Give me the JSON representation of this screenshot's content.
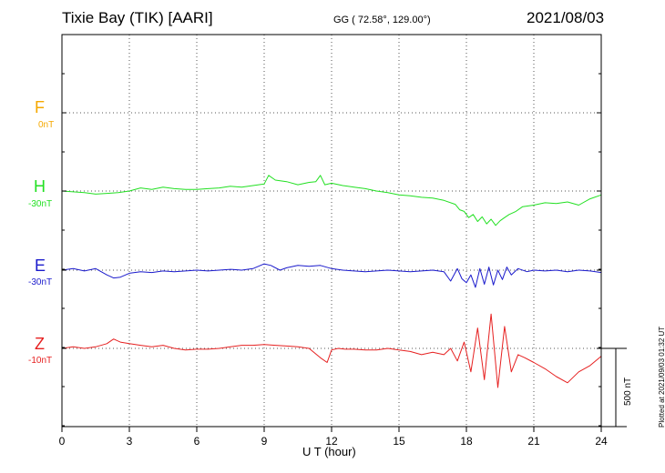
{
  "header": {
    "station": "Tixie Bay (TIK)  [AARI]",
    "coords": "GG ( 72.58°, 129.00°)",
    "date": "2021/08/03"
  },
  "footer": {
    "plotted": "Plotted at 2021/09/03 01:32 UT",
    "scale": "500 nT"
  },
  "components": [
    {
      "name": "F",
      "base": "0nT",
      "color": "#f5a800"
    },
    {
      "name": "H",
      "base": "-30nT",
      "color": "#22e022"
    },
    {
      "name": "E",
      "base": "-30nT",
      "color": "#1a1acc"
    },
    {
      "name": "Z",
      "base": "-10nT",
      "color": "#e62020"
    }
  ],
  "chart_data": {
    "type": "line",
    "title": "",
    "xlabel": "U T (hour)",
    "ylabel": "",
    "xlim": [
      0,
      24
    ],
    "x_ticks": [
      0,
      3,
      6,
      9,
      12,
      15,
      18,
      21,
      24
    ],
    "grid": true,
    "scale_bar_nT": 500,
    "series": [
      {
        "name": "H",
        "baseline_nT": -30,
        "color": "#22e022",
        "x": [
          0,
          0.5,
          1,
          1.5,
          2,
          2.5,
          3,
          3.5,
          4,
          4.5,
          5,
          5.5,
          6,
          6.5,
          7,
          7.5,
          8,
          8.5,
          9,
          9.2,
          9.5,
          10,
          10.5,
          11,
          11.3,
          11.5,
          11.7,
          12,
          12.5,
          13,
          13.5,
          14,
          14.5,
          15,
          15.5,
          16,
          16.5,
          17,
          17.5,
          17.7,
          17.9,
          18.1,
          18.3,
          18.5,
          18.7,
          18.9,
          19.1,
          19.3,
          19.5,
          19.7,
          19.9,
          20.2,
          20.5,
          21,
          21.5,
          22,
          22.5,
          23,
          23.5,
          24
        ],
        "y": [
          0,
          -5,
          -10,
          -20,
          -15,
          -10,
          0,
          20,
          10,
          25,
          15,
          10,
          10,
          15,
          20,
          30,
          25,
          35,
          45,
          100,
          70,
          60,
          40,
          55,
          60,
          100,
          40,
          50,
          35,
          25,
          15,
          0,
          -10,
          -25,
          -30,
          -40,
          -45,
          -60,
          -85,
          -120,
          -130,
          -170,
          -150,
          -195,
          -165,
          -210,
          -180,
          -220,
          -190,
          -170,
          -150,
          -130,
          -100,
          -90,
          -75,
          -80,
          -70,
          -90,
          -50,
          -25
        ]
      },
      {
        "name": "E",
        "baseline_nT": -30,
        "color": "#1a1acc",
        "x": [
          0,
          0.5,
          1,
          1.5,
          2,
          2.3,
          2.6,
          3,
          3.5,
          4,
          4.5,
          5,
          5.5,
          6,
          6.5,
          7,
          7.5,
          8,
          8.5,
          9,
          9.3,
          9.7,
          10,
          10.5,
          11,
          11.5,
          12,
          12.5,
          13,
          13.5,
          14,
          14.5,
          15,
          15.5,
          16,
          16.5,
          17,
          17.3,
          17.6,
          17.8,
          18,
          18.2,
          18.4,
          18.6,
          18.8,
          19,
          19.2,
          19.4,
          19.6,
          19.8,
          20,
          20.3,
          20.7,
          21,
          21.5,
          22,
          22.5,
          23,
          23.5,
          24
        ],
        "y": [
          0,
          10,
          -5,
          10,
          -30,
          -50,
          -45,
          -20,
          -10,
          -15,
          -5,
          -10,
          -5,
          0,
          -5,
          0,
          5,
          0,
          10,
          40,
          30,
          0,
          15,
          30,
          25,
          30,
          10,
          0,
          -5,
          -10,
          -5,
          0,
          -5,
          -10,
          -5,
          0,
          -10,
          -70,
          10,
          -55,
          -80,
          -30,
          -110,
          10,
          -90,
          20,
          -95,
          0,
          -60,
          20,
          -30,
          10,
          -10,
          0,
          -5,
          0,
          -10,
          0,
          -5,
          -15
        ]
      },
      {
        "name": "Z",
        "baseline_nT": -10,
        "color": "#e62020",
        "x": [
          0,
          0.5,
          1,
          1.5,
          2,
          2.3,
          2.6,
          3,
          3.5,
          4,
          4.5,
          5,
          5.5,
          6,
          6.5,
          7,
          7.5,
          8,
          8.5,
          9,
          9.5,
          10,
          10.5,
          11,
          11.5,
          11.8,
          12,
          12.3,
          12.6,
          13,
          13.5,
          14,
          14.5,
          15,
          15.5,
          16,
          16.5,
          17,
          17.3,
          17.6,
          17.9,
          18.2,
          18.5,
          18.8,
          19.1,
          19.4,
          19.7,
          20,
          20.3,
          20.6,
          21,
          21.5,
          22,
          22.5,
          23,
          23.5,
          24
        ],
        "y": [
          0,
          10,
          0,
          10,
          30,
          60,
          40,
          30,
          20,
          10,
          20,
          0,
          -10,
          -5,
          -5,
          0,
          10,
          20,
          20,
          25,
          20,
          15,
          10,
          0,
          -60,
          -90,
          -10,
          0,
          -5,
          -5,
          -10,
          -10,
          0,
          -10,
          -20,
          -40,
          -25,
          -40,
          0,
          -80,
          40,
          -150,
          130,
          -200,
          220,
          -250,
          140,
          -150,
          -40,
          -60,
          -90,
          -130,
          -180,
          -220,
          -150,
          -110,
          -50
        ]
      }
    ]
  }
}
